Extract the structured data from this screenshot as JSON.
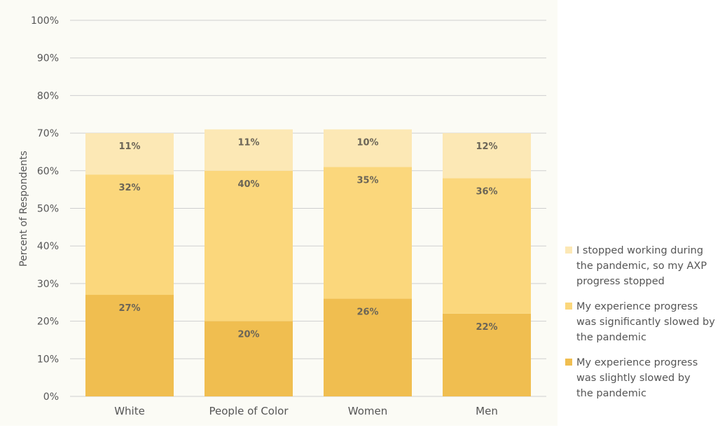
{
  "chart_data": {
    "type": "bar",
    "stacked": true,
    "categories": [
      "White",
      "People of Color",
      "Women",
      "Men"
    ],
    "ylabel": "Percent of Respondents",
    "ylim": [
      0,
      100
    ],
    "yticks": [
      "0%",
      "10%",
      "20%",
      "30%",
      "40%",
      "50%",
      "60%",
      "70%",
      "80%",
      "90%",
      "100%"
    ],
    "grid": true,
    "legend_position": "right",
    "series": [
      {
        "name": "My experience progress was slightly slowed by the pandemic",
        "color": "#F0BE50",
        "values": [
          27,
          20,
          26,
          22
        ],
        "labels": [
          "27%",
          "20%",
          "26%",
          "22%"
        ]
      },
      {
        "name": "My experience progress was significantly slowed by the pandemic",
        "color": "#FBD77C",
        "values": [
          32,
          40,
          35,
          36
        ],
        "labels": [
          "32%",
          "40%",
          "35%",
          "36%"
        ]
      },
      {
        "name": "I stopped working during the pandemic, so my AXP progress stopped",
        "color": "#FCE8B5",
        "values": [
          11,
          11,
          10,
          12
        ],
        "labels": [
          "11%",
          "11%",
          "10%",
          "12%"
        ]
      }
    ],
    "plot_background": "#FBFBF5",
    "grid_color": "#CFCFCF"
  },
  "legend": {
    "items": [
      {
        "line1": "I stopped working during",
        "line2": "the pandemic, so my AXP",
        "line3": "progress stopped"
      },
      {
        "line1": "My experience progress",
        "line2": "was significantly slowed by",
        "line3": "the pandemic"
      },
      {
        "line1": "My experience progress",
        "line2": "was slightly slowed by",
        "line3": "the pandemic"
      }
    ]
  }
}
